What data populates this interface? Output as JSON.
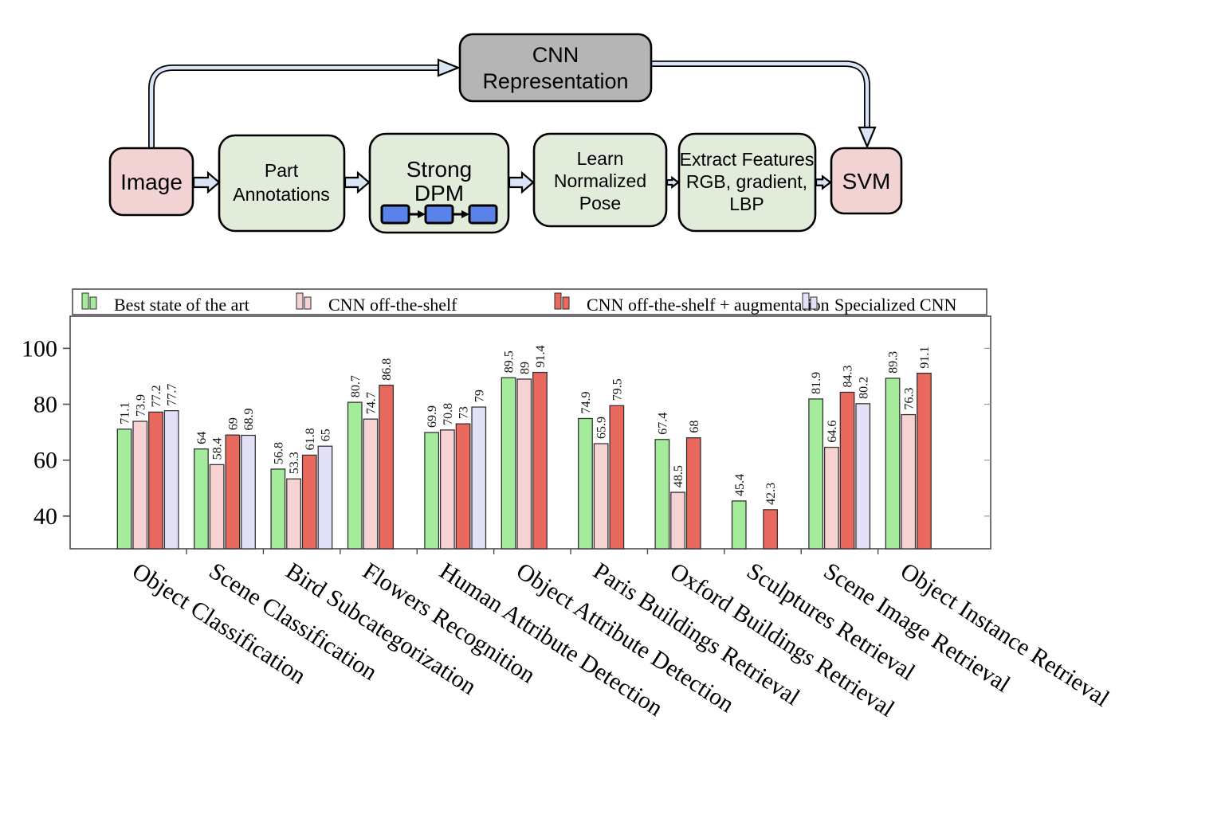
{
  "diagram": {
    "title_hint": "feature extraction pipeline",
    "arrow_fill": "#d9e5f5",
    "nodes": {
      "cnn": {
        "line1": "CNN",
        "line2": "Representation",
        "fill": "#b5b5b5"
      },
      "image": {
        "label": "Image",
        "fill": "#f2d2d3"
      },
      "part": {
        "line1": "Part",
        "line2": "Annotations",
        "fill": "#e1ecda"
      },
      "dpm": {
        "line1": "Strong",
        "line2": "DPM",
        "fill": "#e1ecda",
        "component_fill": "#5b82e8"
      },
      "pose": {
        "line1": "Learn",
        "line2": "Normalized",
        "line3": "Pose",
        "fill": "#e1ecda"
      },
      "features": {
        "line1": "Extract Features",
        "line2": "RGB, gradient,",
        "line3": "LBP",
        "fill": "#e1ecda"
      },
      "svm": {
        "label": "SVM",
        "fill": "#f2d2d3"
      }
    }
  },
  "chart_data": {
    "type": "bar",
    "title": "",
    "xlabel": "",
    "ylabel": "",
    "grid": false,
    "legend_position": "top",
    "bar_value_labels": true,
    "ylim": [
      28.3,
      111.5
    ],
    "yticks": [
      40,
      60,
      80,
      100
    ],
    "categories": [
      "Object Classification",
      "Scene Classification",
      "Bird Subcategorization",
      "Flowers Recognition",
      "Human Attribute Detection",
      "Object Attribute Detection",
      "Paris Buildings Retrieval",
      "Oxford Buildings Retrieval",
      "Sculptures Retrieval",
      "Scene Image Retrieval",
      "Object Instance Retrieval"
    ],
    "series": [
      {
        "name": "Best state of the art",
        "color": "#a4eb9b",
        "values": [
          71.1,
          64,
          56.8,
          80.7,
          69.9,
          89.5,
          74.9,
          67.4,
          45.4,
          81.9,
          89.3
        ]
      },
      {
        "name": "CNN off-the-shelf",
        "color": "#f6d2d2",
        "values": [
          73.9,
          58.4,
          53.3,
          74.7,
          70.8,
          89,
          65.9,
          48.5,
          null,
          64.6,
          76.3
        ]
      },
      {
        "name": "CNN off-the-shelf + augmentation",
        "color": "#e9695f",
        "values": [
          77.2,
          69,
          61.8,
          86.8,
          73,
          91.4,
          79.5,
          68,
          42.3,
          84.3,
          91.1
        ]
      },
      {
        "name": "Specialized CNN",
        "color": "#e2e1f7",
        "values": [
          77.7,
          68.9,
          65,
          null,
          79,
          null,
          null,
          null,
          null,
          80.2,
          null
        ]
      }
    ]
  }
}
